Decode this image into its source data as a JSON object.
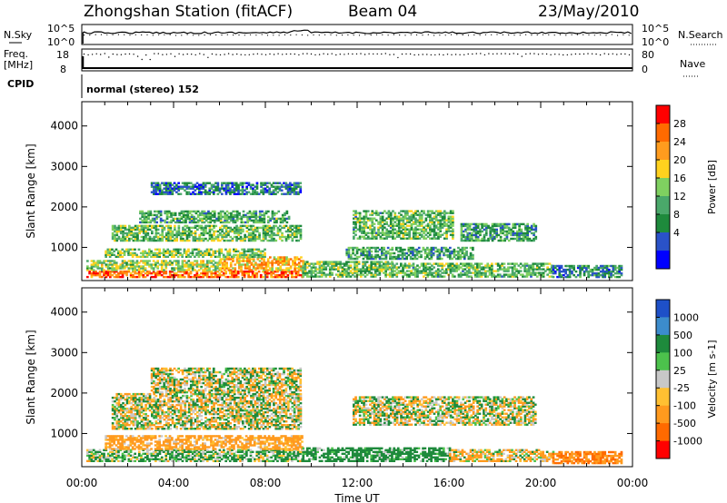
{
  "header": {
    "station": "Zhongshan Station (fitACF)",
    "beam": "Beam 04",
    "date": "23/May/2010"
  },
  "top_panels": {
    "nsky_label": "N.Sky",
    "nsearch_label": "N.Search",
    "nsky_ticks": [
      "10^5",
      "10^0"
    ],
    "nsearch_ticks": [
      "10^5",
      "10^0"
    ],
    "freq_label": "Freq.",
    "freq_unit": "[MHz]",
    "freq_ticks": [
      "18",
      "8"
    ],
    "nave_label": "Nave",
    "nave_ticks": [
      "80",
      "0"
    ],
    "cpid_label": "CPID",
    "cpid_text": "normal (stereo) 152"
  },
  "chart_data": [
    {
      "type": "heatmap",
      "title": "",
      "xlabel": "Time UT",
      "ylabel": "Slant Range [km]",
      "x_ticks": [
        "00:00",
        "04:00",
        "08:00",
        "12:00",
        "16:00",
        "20:00",
        "00:00"
      ],
      "xlim_hours": [
        0,
        24
      ],
      "y_ticks": [
        "1000",
        "2000",
        "3000",
        "4000"
      ],
      "ylim": [
        180,
        4600
      ],
      "colorbar": {
        "label": "Power [dB]",
        "ticks": [
          "4",
          "8",
          "12",
          "16",
          "20",
          "24",
          "28"
        ],
        "range": [
          0,
          32
        ],
        "colors": [
          "#0000ff",
          "#2a52c8",
          "#1e8a3c",
          "#4aa86a",
          "#7fd060",
          "#ffd21e",
          "#ff9c1e",
          "#ff6a00",
          "#ff0000"
        ]
      },
      "regions": [
        {
          "t": [
            0.2,
            9.6
          ],
          "r": [
            250,
            420
          ],
          "level": 26
        },
        {
          "t": [
            0.2,
            6.0
          ],
          "r": [
            420,
            650
          ],
          "level": 16
        },
        {
          "t": [
            6.0,
            9.6
          ],
          "r": [
            420,
            750
          ],
          "level": 22
        },
        {
          "t": [
            9.6,
            13.5
          ],
          "r": [
            260,
            650
          ],
          "level": 14
        },
        {
          "t": [
            13.5,
            20.5
          ],
          "r": [
            260,
            600
          ],
          "level": 13
        },
        {
          "t": [
            1.0,
            8.0
          ],
          "r": [
            750,
            950
          ],
          "level": 15
        },
        {
          "t": [
            1.3,
            9.5
          ],
          "r": [
            1150,
            1550
          ],
          "level": 14
        },
        {
          "t": [
            2.5,
            9.0
          ],
          "r": [
            1600,
            1900
          ],
          "level": 12
        },
        {
          "t": [
            3.0,
            9.5
          ],
          "r": [
            2300,
            2600
          ],
          "level": 8
        },
        {
          "t": [
            11.8,
            16.2
          ],
          "r": [
            1200,
            1900
          ],
          "level": 13
        },
        {
          "t": [
            16.5,
            19.8
          ],
          "r": [
            1150,
            1600
          ],
          "level": 11
        },
        {
          "t": [
            11.5,
            17.0
          ],
          "r": [
            700,
            1000
          ],
          "level": 11
        },
        {
          "t": [
            20.5,
            23.5
          ],
          "r": [
            250,
            550
          ],
          "level": 9
        }
      ]
    },
    {
      "type": "heatmap",
      "title": "",
      "xlabel": "Time UT",
      "ylabel": "Slant Range [km]",
      "x_ticks": [
        "00:00",
        "04:00",
        "08:00",
        "12:00",
        "16:00",
        "20:00",
        "00:00"
      ],
      "xlim_hours": [
        0,
        24
      ],
      "y_ticks": [
        "1000",
        "2000",
        "3000",
        "4000"
      ],
      "ylim": [
        180,
        4600
      ],
      "colorbar": {
        "label": "Velocity [m s-1]",
        "ticks": [
          "1000",
          "500",
          "100",
          "25",
          "-25",
          "-100",
          "-500",
          "-1000"
        ],
        "colors": [
          "#1e50c8",
          "#3c8ccc",
          "#1e8a3c",
          "#4cc24c",
          "#c8c8c8",
          "#ffc032",
          "#ff9a1e",
          "#ff6a00",
          "#ff0000"
        ]
      },
      "regions": [
        {
          "t": [
            0.2,
            9.6
          ],
          "r": [
            300,
            600
          ],
          "velocity": 80
        },
        {
          "t": [
            1.0,
            9.6
          ],
          "r": [
            600,
            950
          ],
          "velocity": -150
        },
        {
          "t": [
            9.6,
            16.0
          ],
          "r": [
            300,
            650
          ],
          "velocity": 150
        },
        {
          "t": [
            16.0,
            20.5
          ],
          "r": [
            300,
            600
          ],
          "velocity": -60
        },
        {
          "t": [
            1.3,
            9.5
          ],
          "r": [
            1100,
            2000
          ],
          "velocity": 0
        },
        {
          "t": [
            3.0,
            9.5
          ],
          "r": [
            2000,
            2600
          ],
          "velocity": 0
        },
        {
          "t": [
            11.8,
            19.8
          ],
          "r": [
            1200,
            1900
          ],
          "velocity": 0
        },
        {
          "t": [
            20.5,
            23.5
          ],
          "r": [
            250,
            550
          ],
          "velocity": -300
        }
      ]
    }
  ]
}
